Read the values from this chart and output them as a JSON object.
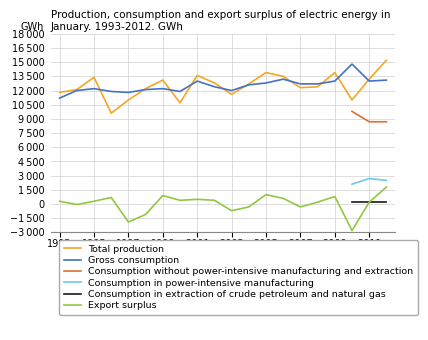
{
  "title": "Production, consumption and export surplus of electric energy in\nJanuary. 1993-2012. GWh",
  "ylabel": "GWh",
  "years": [
    1993,
    1994,
    1995,
    1996,
    1997,
    1998,
    1999,
    2000,
    2001,
    2002,
    2003,
    2004,
    2005,
    2006,
    2007,
    2008,
    2009,
    2010,
    2011,
    2012
  ],
  "total_production": [
    11800,
    12100,
    13400,
    9600,
    11000,
    12200,
    13100,
    10700,
    13600,
    12800,
    11600,
    12700,
    13900,
    13500,
    12300,
    12400,
    13900,
    11000,
    13200,
    15200
  ],
  "gross_consumption": [
    11200,
    12000,
    12200,
    11900,
    11800,
    12100,
    12200,
    11900,
    13000,
    12400,
    12000,
    12600,
    12800,
    13200,
    12700,
    12700,
    13000,
    14800,
    13000,
    13100
  ],
  "consumption_without_power": [
    null,
    null,
    null,
    null,
    null,
    null,
    null,
    null,
    null,
    null,
    null,
    null,
    null,
    null,
    null,
    null,
    null,
    9800,
    8700,
    8700
  ],
  "consumption_power_intensive": [
    null,
    null,
    null,
    null,
    null,
    null,
    null,
    null,
    null,
    null,
    null,
    null,
    null,
    null,
    null,
    null,
    null,
    2100,
    2700,
    2500
  ],
  "consumption_extraction": [
    null,
    null,
    null,
    null,
    null,
    null,
    null,
    null,
    null,
    null,
    null,
    null,
    null,
    null,
    null,
    null,
    null,
    200,
    200,
    200
  ],
  "export_surplus": [
    300,
    -50,
    300,
    700,
    -1900,
    -1100,
    900,
    400,
    500,
    400,
    -700,
    -300,
    1000,
    600,
    -300,
    200,
    800,
    -2800,
    200,
    1800
  ],
  "color_total_production": "#f5a623",
  "color_gross_consumption": "#4472c4",
  "color_without_power": "#e07030",
  "color_power_intensive": "#70c8e8",
  "color_extraction": "#1a1a1a",
  "color_export_surplus": "#90c840",
  "xlim": [
    1992.5,
    2012.5
  ],
  "ylim": [
    -3000,
    18000
  ],
  "yticks": [
    -3000,
    -1500,
    0,
    1500,
    3000,
    4500,
    6000,
    7500,
    9000,
    10500,
    12000,
    13500,
    15000,
    16500,
    18000
  ],
  "xticks": [
    1993,
    1995,
    1997,
    1999,
    2001,
    2003,
    2005,
    2007,
    2009,
    2011
  ],
  "legend_labels": [
    "Total production",
    "Gross consumption",
    "Consumption without power-intensive manufacturing and extraction",
    "Consumption in power-intensive manufacturing",
    "Consumption in extraction of crude petroleum and natural gas",
    "Export surplus"
  ],
  "title_fontsize": 7.5,
  "axis_fontsize": 7,
  "legend_fontsize": 6.8
}
